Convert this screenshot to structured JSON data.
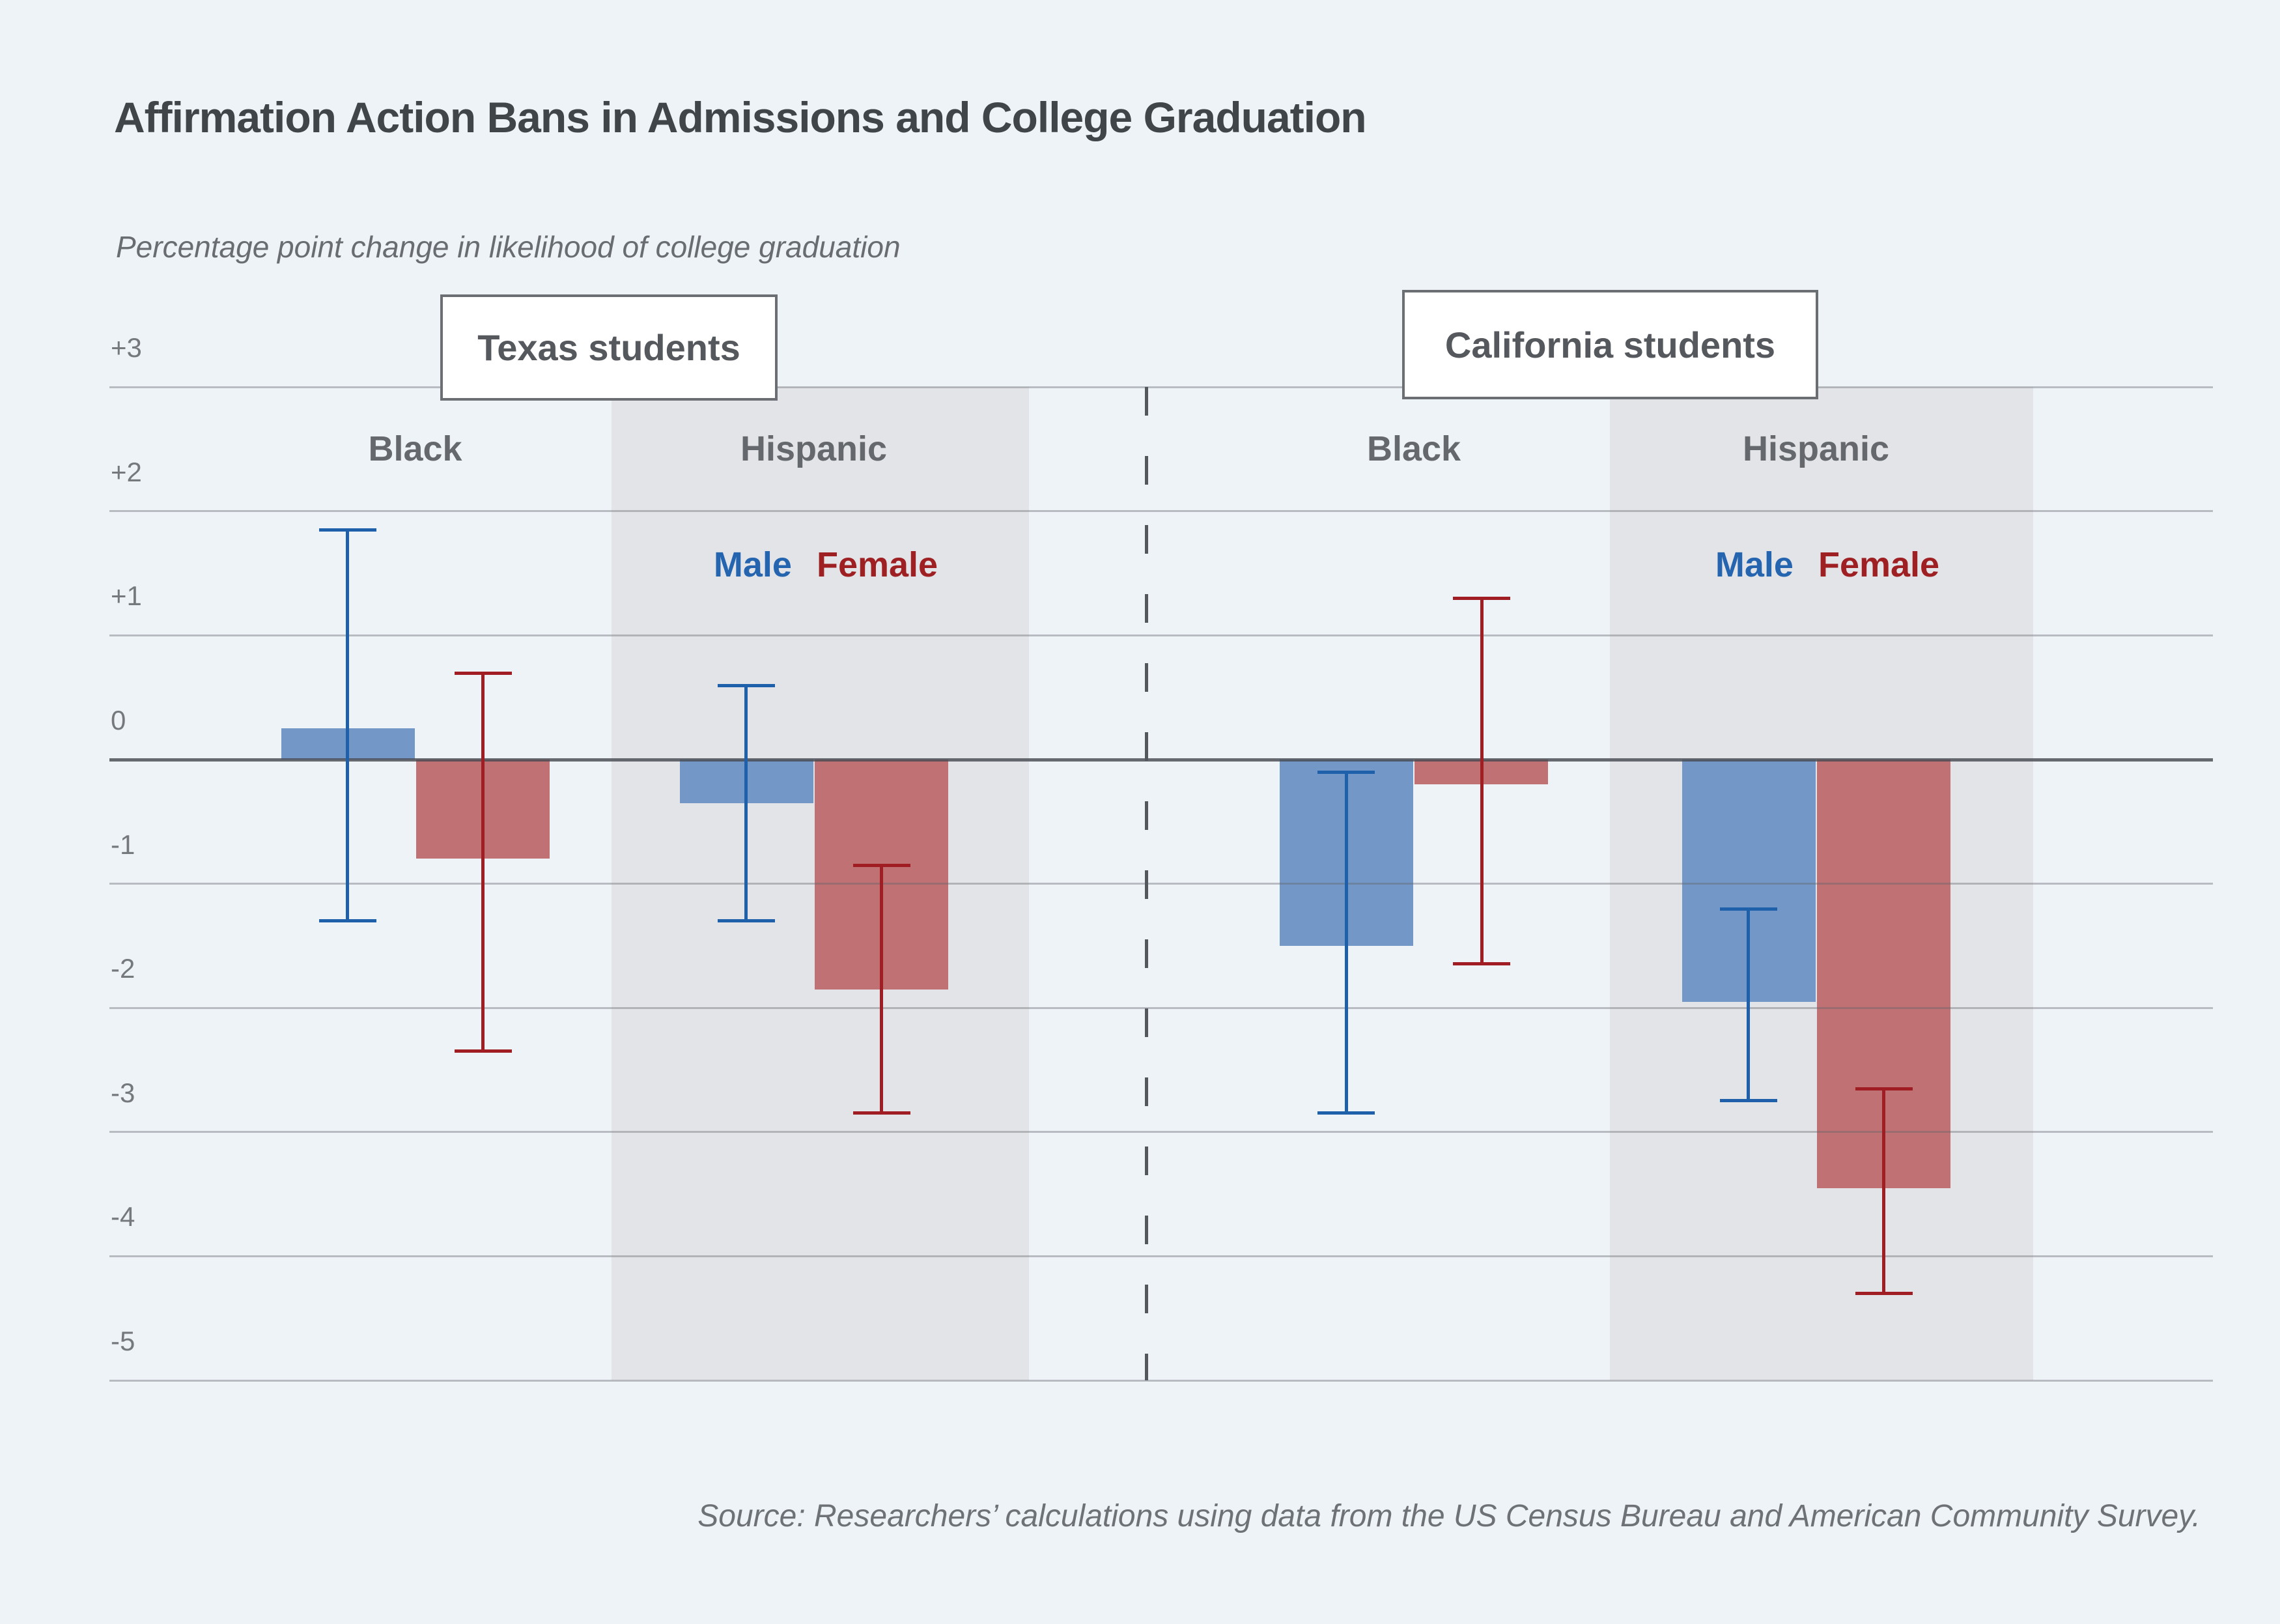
{
  "chart_data": {
    "type": "bar",
    "title": "Affirmation Action Bans in Admissions and College Graduation",
    "subtitle": "Percentage point change in likelihood of college graduation",
    "ylabel": "Percentage point change in likelihood of college graduation",
    "source": "Source: Researchers’ calculations using data from the US Census Bureau and American Community Survey.",
    "units": "percentage points",
    "ylim": [
      -5,
      3
    ],
    "grid": "horizontal",
    "yticks": [
      {
        "label": "+3",
        "value": 3
      },
      {
        "label": "+2",
        "value": 2
      },
      {
        "label": "+1",
        "value": 1
      },
      {
        "label": "0",
        "value": 0
      },
      {
        "label": "-1",
        "value": -1
      },
      {
        "label": "-2",
        "value": -2
      },
      {
        "label": "-3",
        "value": -3
      },
      {
        "label": "-4",
        "value": -4
      },
      {
        "label": "-5",
        "value": -5
      }
    ],
    "legend": {
      "entries": [
        {
          "label": "Male",
          "color": "#2565b0"
        },
        {
          "label": "Female",
          "color": "#9e2022"
        }
      ]
    },
    "panels": [
      {
        "label": "Texas students",
        "groups": [
          {
            "label": "Black",
            "shaded": false,
            "bars": [
              {
                "series": "Male",
                "value": 0.25,
                "ci_low": -1.3,
                "ci_high": 1.85
              },
              {
                "series": "Female",
                "value": -0.8,
                "ci_low": -2.35,
                "ci_high": 0.7
              }
            ]
          },
          {
            "label": "Hispanic",
            "shaded": true,
            "bars": [
              {
                "series": "Male",
                "value": -0.35,
                "ci_low": -1.3,
                "ci_high": 0.6
              },
              {
                "series": "Female",
                "value": -1.85,
                "ci_low": -2.85,
                "ci_high": -0.85
              }
            ]
          }
        ]
      },
      {
        "label": "California students",
        "groups": [
          {
            "label": "Black",
            "shaded": false,
            "bars": [
              {
                "series": "Male",
                "value": -1.5,
                "ci_low": -2.85,
                "ci_high": -0.1
              },
              {
                "series": "Female",
                "value": -0.2,
                "ci_low": -1.65,
                "ci_high": 1.3
              }
            ]
          },
          {
            "label": "Hispanic",
            "shaded": true,
            "bars": [
              {
                "series": "Male",
                "value": -1.95,
                "ci_low": -2.75,
                "ci_high": -1.2
              },
              {
                "series": "Female",
                "value": -3.45,
                "ci_low": -4.3,
                "ci_high": -2.65
              }
            ]
          }
        ]
      }
    ],
    "colors": {
      "male_bar": "#7397c6",
      "male_error": "#1f60ab",
      "female_bar": "#bf7173",
      "female_error": "#a01d23",
      "background": "#eef3f8",
      "shaded_band": "#e2e4e7",
      "gridline": "#c0c2c5",
      "zero_line": "#686c71",
      "title_text": "#404549",
      "label_text": "#65686c"
    }
  }
}
